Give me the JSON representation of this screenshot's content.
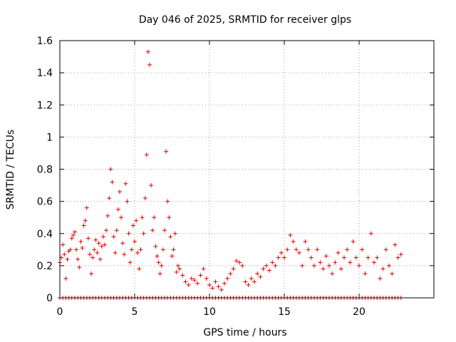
{
  "chart_data": {
    "type": "scatter",
    "title": "Day 046 of 2025, SRMTID for receiver glps",
    "xlabel": "GPS time / hours",
    "ylabel": "SRMTID / TECUs",
    "xlim": [
      0,
      25
    ],
    "ylim": [
      0,
      1.6
    ],
    "x_ticks": [
      0,
      5,
      10,
      15,
      20
    ],
    "x_tick_labels": [
      "0",
      "5",
      "10",
      "15",
      "20"
    ],
    "y_ticks": [
      0,
      0.2,
      0.4,
      0.6,
      0.8,
      1.0,
      1.2,
      1.4,
      1.6
    ],
    "y_tick_labels": [
      "0",
      "0.2",
      "0.4",
      "0.6",
      "0.8",
      "1",
      "1.2",
      "1.4",
      "1.6"
    ],
    "grid": true,
    "marker": "+",
    "marker_color": "#e00000",
    "series": [
      {
        "name": "SRMTID",
        "x": [
          0.0,
          0.1,
          0.2,
          0.3,
          0.4,
          0.5,
          0.6,
          0.7,
          0.8,
          0.9,
          1.0,
          1.1,
          1.2,
          1.3,
          1.4,
          1.5,
          1.6,
          1.7,
          1.8,
          1.9,
          2.0,
          2.1,
          2.2,
          2.3,
          2.4,
          2.5,
          2.6,
          2.7,
          2.8,
          2.9,
          3.0,
          3.1,
          3.2,
          3.3,
          3.4,
          3.5,
          3.6,
          3.7,
          3.8,
          3.9,
          4.0,
          4.1,
          4.2,
          4.3,
          4.4,
          4.5,
          4.6,
          4.7,
          4.8,
          4.9,
          5.0,
          5.1,
          5.2,
          5.3,
          5.4,
          5.5,
          5.6,
          5.7,
          5.8,
          5.9,
          6.0,
          6.1,
          6.2,
          6.3,
          6.4,
          6.5,
          6.6,
          6.7,
          6.8,
          6.9,
          7.0,
          7.1,
          7.2,
          7.3,
          7.4,
          7.5,
          7.6,
          7.7,
          7.8,
          7.9,
          8.0,
          8.2,
          8.4,
          8.6,
          8.8,
          9.0,
          9.2,
          9.4,
          9.6,
          9.8,
          10.0,
          10.2,
          10.4,
          10.6,
          10.8,
          11.0,
          11.2,
          11.4,
          11.6,
          11.8,
          12.0,
          12.2,
          12.4,
          12.6,
          12.8,
          13.0,
          13.2,
          13.4,
          13.6,
          13.8,
          14.0,
          14.2,
          14.4,
          14.6,
          14.8,
          15.0,
          15.2,
          15.4,
          15.6,
          15.8,
          16.0,
          16.2,
          16.4,
          16.6,
          16.8,
          17.0,
          17.2,
          17.4,
          17.6,
          17.8,
          18.0,
          18.2,
          18.4,
          18.6,
          18.8,
          19.0,
          19.2,
          19.4,
          19.6,
          19.8,
          20.0,
          20.2,
          20.4,
          20.6,
          20.8,
          21.0,
          21.2,
          21.4,
          21.6,
          21.8,
          22.0,
          22.2,
          22.4,
          22.6,
          22.8
        ],
        "y": [
          0.22,
          0.25,
          0.33,
          0.27,
          0.12,
          0.24,
          0.29,
          0.3,
          0.37,
          0.39,
          0.41,
          0.3,
          0.24,
          0.19,
          0.35,
          0.31,
          0.45,
          0.48,
          0.56,
          0.37,
          0.27,
          0.15,
          0.25,
          0.3,
          0.36,
          0.28,
          0.34,
          0.24,
          0.32,
          0.38,
          0.33,
          0.42,
          0.51,
          0.62,
          0.8,
          0.72,
          0.38,
          0.28,
          0.42,
          0.55,
          0.66,
          0.5,
          0.34,
          0.27,
          0.71,
          0.6,
          0.4,
          0.22,
          0.3,
          0.45,
          0.35,
          0.48,
          0.28,
          0.18,
          0.3,
          0.5,
          0.4,
          0.62,
          0.89,
          1.53,
          1.45,
          0.7,
          0.42,
          0.5,
          0.32,
          0.26,
          0.22,
          0.15,
          0.2,
          0.3,
          0.42,
          0.91,
          0.6,
          0.5,
          0.38,
          0.26,
          0.3,
          0.4,
          0.16,
          0.2,
          0.18,
          0.14,
          0.1,
          0.08,
          0.12,
          0.11,
          0.09,
          0.14,
          0.18,
          0.12,
          0.08,
          0.06,
          0.1,
          0.07,
          0.05,
          0.09,
          0.12,
          0.15,
          0.18,
          0.23,
          0.22,
          0.2,
          0.1,
          0.08,
          0.12,
          0.1,
          0.15,
          0.13,
          0.18,
          0.2,
          0.17,
          0.22,
          0.2,
          0.25,
          0.28,
          0.25,
          0.3,
          0.39,
          0.35,
          0.3,
          0.28,
          0.2,
          0.35,
          0.3,
          0.25,
          0.2,
          0.3,
          0.22,
          0.18,
          0.26,
          0.2,
          0.15,
          0.22,
          0.28,
          0.18,
          0.25,
          0.3,
          0.22,
          0.35,
          0.25,
          0.2,
          0.3,
          0.15,
          0.25,
          0.4,
          0.22,
          0.25,
          0.12,
          0.18,
          0.3,
          0.2,
          0.15,
          0.33,
          0.25,
          0.27
        ]
      },
      {
        "name": "zero-level samples",
        "x_range": [
          0,
          22.8
        ],
        "x_step": 0.2,
        "y_value": 0
      }
    ]
  }
}
